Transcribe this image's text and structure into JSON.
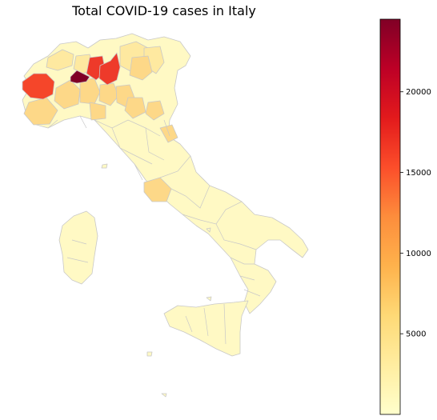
{
  "title": "Total COVID-19 cases in Italy",
  "colorbar": {
    "min": 0,
    "max": 24500,
    "ticks": [
      "5000",
      "10000",
      "15000",
      "20000"
    ],
    "tick_values": [
      5000,
      10000,
      15000,
      20000
    ],
    "colormap": [
      "#ffffcc",
      "#ffeda0",
      "#fed976",
      "#feb24c",
      "#fd8d3c",
      "#fc4e2a",
      "#e31a1c",
      "#bd0026",
      "#800026"
    ]
  },
  "colors": {
    "border": "#c8c8c8",
    "low": "#fff9c4",
    "light": "#fee9a0",
    "medium": "#fdd888",
    "orange_red": "#f5462a",
    "red": "#ee3a2a",
    "max": "#800026"
  }
}
